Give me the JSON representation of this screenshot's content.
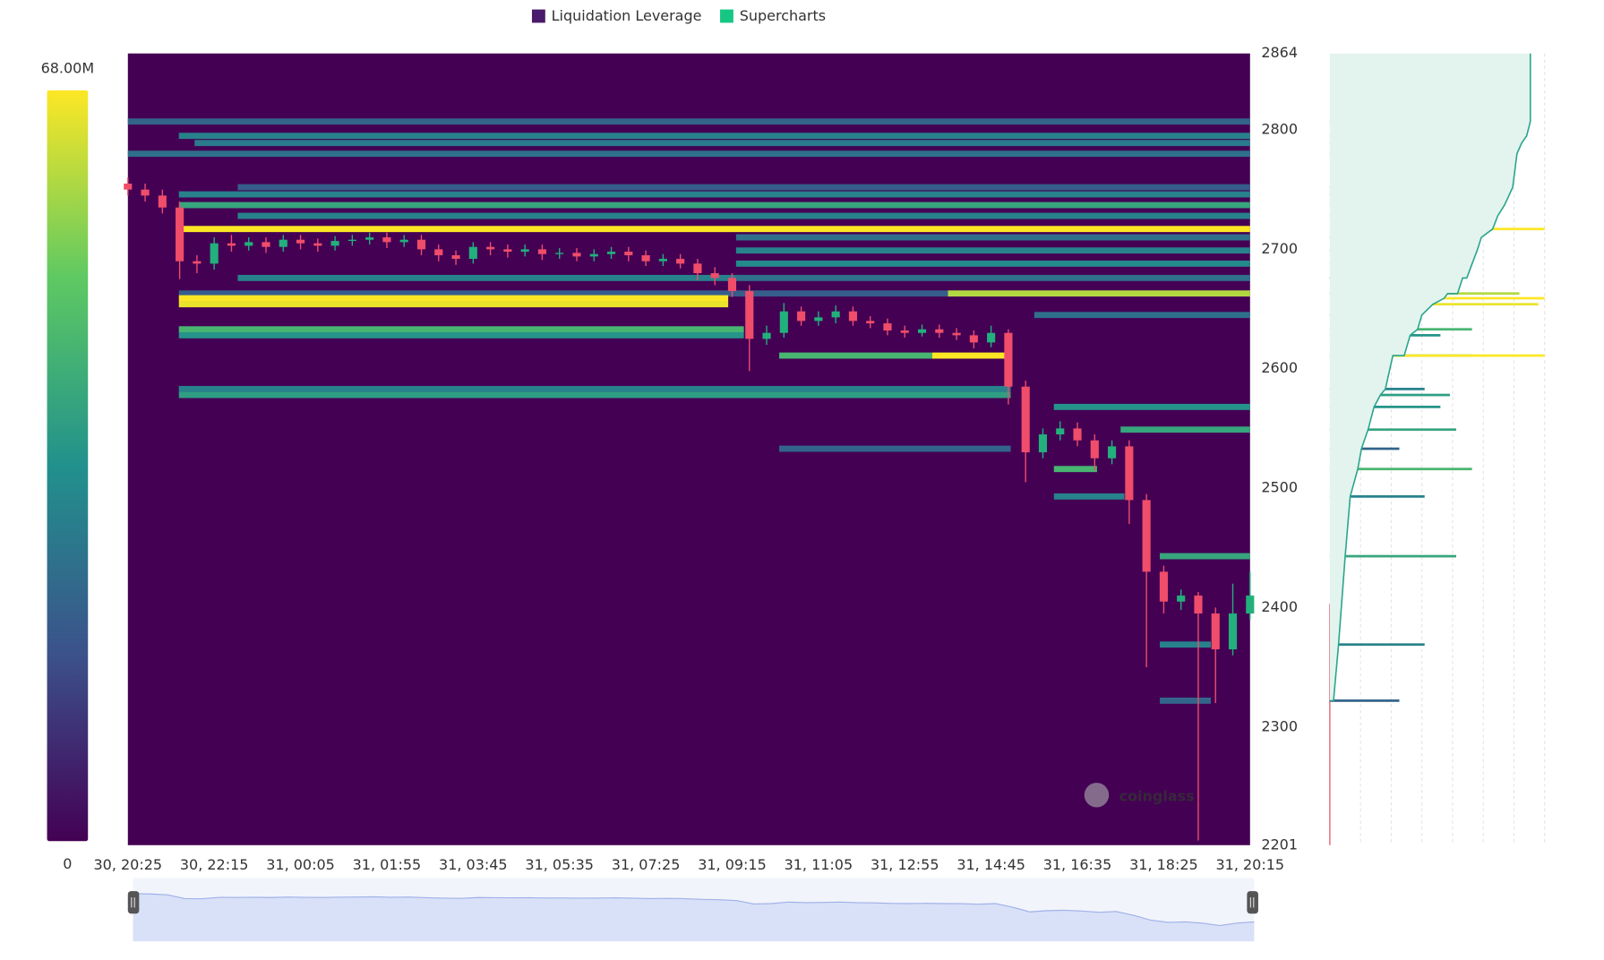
{
  "chart_data": {
    "type": "heatmap",
    "xticks": [
      "30, 20:25",
      "30, 22:15",
      "31, 00:05",
      "31, 01:55",
      "31, 03:45",
      "31, 05:35",
      "31, 07:25",
      "31, 09:15",
      "31, 11:05",
      "31, 12:55",
      "31, 14:45",
      "31, 16:35",
      "31, 18:25",
      "31, 20:15"
    ],
    "ylim": [
      2201,
      2864
    ],
    "yticks": [
      2201,
      2300,
      2400,
      2500,
      2600,
      2700,
      2800,
      2864
    ],
    "colormap": [
      "#440154",
      "#3b528b",
      "#21918c",
      "#5ec962",
      "#fde725"
    ],
    "clim": [
      0,
      68
    ],
    "colorbar_ticks": [
      {
        "value": 68,
        "label": "68.00M"
      },
      0
    ],
    "watermark": "coinglass",
    "series": [
      {
        "name": "Liquidation Leverage",
        "type": "heatmap",
        "color": "#4a1a6b",
        "bands": [
          {
            "price": 2807,
            "from": "30, 20:25",
            "to": "31, 20:15",
            "value": 22
          },
          {
            "price": 2795,
            "from": "30, 21:30",
            "to": "31, 20:15",
            "value": 30
          },
          {
            "price": 2789,
            "from": "30, 21:50",
            "to": "31, 20:15",
            "value": 28
          },
          {
            "price": 2780,
            "from": "30, 20:25",
            "to": "31, 20:15",
            "value": 25
          },
          {
            "price": 2752,
            "from": "30, 22:45",
            "to": "31, 20:15",
            "value": 20
          },
          {
            "price": 2746,
            "from": "30, 21:30",
            "to": "31, 20:15",
            "value": 30
          },
          {
            "price": 2737,
            "from": "30, 21:30",
            "to": "31, 20:15",
            "value": 40
          },
          {
            "price": 2728,
            "from": "30, 22:45",
            "to": "31, 20:15",
            "value": 30
          },
          {
            "price": 2717,
            "from": "30, 21:30",
            "to": "31, 20:15",
            "value": 68
          },
          {
            "price": 2710,
            "from": "31, 09:20",
            "to": "31, 20:15",
            "value": 25
          },
          {
            "price": 2699,
            "from": "31, 09:20",
            "to": "31, 20:15",
            "value": 30
          },
          {
            "price": 2688,
            "from": "31, 09:20",
            "to": "31, 20:15",
            "value": 32
          },
          {
            "price": 2676,
            "from": "30, 22:45",
            "to": "31, 09:20",
            "value": 30
          },
          {
            "price": 2676,
            "from": "31, 09:20",
            "to": "31, 20:15",
            "value": 25
          },
          {
            "price": 2663,
            "from": "30, 21:30",
            "to": "31, 13:50",
            "value": 20
          },
          {
            "price": 2663,
            "from": "31, 13:50",
            "to": "31, 20:15",
            "value": 60
          },
          {
            "price": 2659,
            "from": "30, 21:30",
            "to": "31, 09:10",
            "value": 68
          },
          {
            "price": 2654,
            "from": "30, 21:30",
            "to": "31, 09:10",
            "value": 66
          },
          {
            "price": 2645,
            "from": "31, 15:40",
            "to": "31, 20:15",
            "value": 25
          },
          {
            "price": 2633,
            "from": "30, 21:30",
            "to": "31, 09:30",
            "value": 45
          },
          {
            "price": 2628,
            "from": "30, 21:30",
            "to": "31, 09:30",
            "value": 35
          },
          {
            "price": 2611,
            "from": "31, 10:15",
            "to": "31, 13:30",
            "value": 45
          },
          {
            "price": 2611,
            "from": "31, 13:30",
            "to": "31, 15:10",
            "value": 68
          },
          {
            "price": 2583,
            "from": "30, 21:30",
            "to": "31, 15:10",
            "value": 30
          },
          {
            "price": 2578,
            "from": "30, 21:30",
            "to": "31, 15:10",
            "value": 38
          },
          {
            "price": 2568,
            "from": "31, 16:05",
            "to": "31, 20:15",
            "value": 35
          },
          {
            "price": 2549,
            "from": "31, 17:30",
            "to": "31, 20:15",
            "value": 40
          },
          {
            "price": 2533,
            "from": "31, 10:15",
            "to": "31, 15:10",
            "value": 22
          },
          {
            "price": 2516,
            "from": "31, 16:05",
            "to": "31, 17:00",
            "value": 45
          },
          {
            "price": 2493,
            "from": "31, 16:05",
            "to": "31, 17:35",
            "value": 30
          },
          {
            "price": 2443,
            "from": "31, 18:20",
            "to": "31, 20:15",
            "value": 40
          },
          {
            "price": 2369,
            "from": "31, 18:20",
            "to": "31, 19:25",
            "value": 30
          },
          {
            "price": 2322,
            "from": "31, 18:20",
            "to": "31, 19:25",
            "value": 22
          }
        ]
      },
      {
        "name": "Supercharts",
        "type": "candlestick",
        "color": "#16c784",
        "up_color": "#22b07d",
        "down_color": "#ef4d6a",
        "x": [
          "30, 20:25",
          "30, 20:47",
          "30, 21:09",
          "30, 21:31",
          "30, 21:53",
          "30, 22:15",
          "30, 22:37",
          "30, 22:59",
          "30, 23:21",
          "30, 23:43",
          "31, 00:05",
          "31, 00:27",
          "31, 00:49",
          "31, 01:11",
          "31, 01:33",
          "31, 01:55",
          "31, 02:17",
          "31, 02:39",
          "31, 03:01",
          "31, 03:23",
          "31, 03:45",
          "31, 04:07",
          "31, 04:29",
          "31, 04:51",
          "31, 05:13",
          "31, 05:35",
          "31, 05:57",
          "31, 06:19",
          "31, 06:41",
          "31, 07:03",
          "31, 07:25",
          "31, 07:47",
          "31, 08:09",
          "31, 08:31",
          "31, 08:53",
          "31, 09:15",
          "31, 09:37",
          "31, 09:59",
          "31, 10:21",
          "31, 10:43",
          "31, 11:05",
          "31, 11:27",
          "31, 11:49",
          "31, 12:11",
          "31, 12:33",
          "31, 12:55",
          "31, 13:17",
          "31, 13:39",
          "31, 14:01",
          "31, 14:23",
          "31, 14:45",
          "31, 15:07",
          "31, 15:29",
          "31, 15:51",
          "31, 16:13",
          "31, 16:35",
          "31, 16:57",
          "31, 17:19",
          "31, 17:41",
          "31, 18:03",
          "31, 18:25",
          "31, 18:47",
          "31, 19:09",
          "31, 19:31",
          "31, 19:53",
          "31, 20:15"
        ],
        "open": [
          2755,
          2750,
          2745,
          2735,
          2690,
          2688,
          2705,
          2703,
          2706,
          2702,
          2708,
          2705,
          2703,
          2707,
          2708,
          2710,
          2706,
          2708,
          2700,
          2695,
          2692,
          2702,
          2700,
          2698,
          2700,
          2696,
          2697,
          2694,
          2696,
          2698,
          2695,
          2690,
          2692,
          2688,
          2680,
          2676,
          2665,
          2625,
          2630,
          2648,
          2640,
          2643,
          2648,
          2640,
          2638,
          2632,
          2630,
          2633,
          2630,
          2628,
          2622,
          2630,
          2585,
          2530,
          2545,
          2550,
          2540,
          2525,
          2535,
          2490,
          2430,
          2405,
          2410,
          2395,
          2365,
          2395
        ],
        "high": [
          2760,
          2755,
          2750,
          2740,
          2695,
          2710,
          2712,
          2710,
          2710,
          2712,
          2712,
          2709,
          2711,
          2712,
          2714,
          2714,
          2712,
          2712,
          2704,
          2699,
          2706,
          2706,
          2704,
          2704,
          2704,
          2701,
          2701,
          2700,
          2702,
          2702,
          2699,
          2696,
          2696,
          2692,
          2685,
          2680,
          2670,
          2636,
          2655,
          2652,
          2648,
          2653,
          2652,
          2644,
          2642,
          2636,
          2637,
          2637,
          2634,
          2632,
          2636,
          2633,
          2590,
          2550,
          2556,
          2555,
          2545,
          2540,
          2540,
          2495,
          2435,
          2415,
          2413,
          2400,
          2420,
          2430
        ],
        "low": [
          2745,
          2740,
          2730,
          2675,
          2680,
          2683,
          2698,
          2699,
          2697,
          2698,
          2700,
          2698,
          2699,
          2703,
          2704,
          2701,
          2702,
          2695,
          2690,
          2687,
          2688,
          2695,
          2693,
          2694,
          2691,
          2692,
          2690,
          2690,
          2692,
          2690,
          2686,
          2686,
          2684,
          2674,
          2670,
          2660,
          2598,
          2620,
          2626,
          2636,
          2636,
          2638,
          2636,
          2634,
          2628,
          2626,
          2627,
          2626,
          2624,
          2617,
          2618,
          2570,
          2505,
          2525,
          2540,
          2535,
          2515,
          2520,
          2470,
          2350,
          2395,
          2398,
          2205,
          2320,
          2360,
          2390
        ],
        "close": [
          2750,
          2745,
          2735,
          2690,
          2688,
          2705,
          2703,
          2706,
          2702,
          2708,
          2705,
          2703,
          2707,
          2708,
          2710,
          2706,
          2708,
          2700,
          2695,
          2692,
          2702,
          2700,
          2698,
          2700,
          2696,
          2697,
          2694,
          2696,
          2698,
          2695,
          2690,
          2692,
          2688,
          2680,
          2676,
          2665,
          2625,
          2630,
          2648,
          2640,
          2643,
          2648,
          2640,
          2638,
          2632,
          2630,
          2633,
          2630,
          2628,
          2622,
          2630,
          2585,
          2530,
          2545,
          2550,
          2540,
          2525,
          2535,
          2490,
          2430,
          2405,
          2410,
          2395,
          2365,
          2395,
          2410
        ]
      }
    ]
  }
}
